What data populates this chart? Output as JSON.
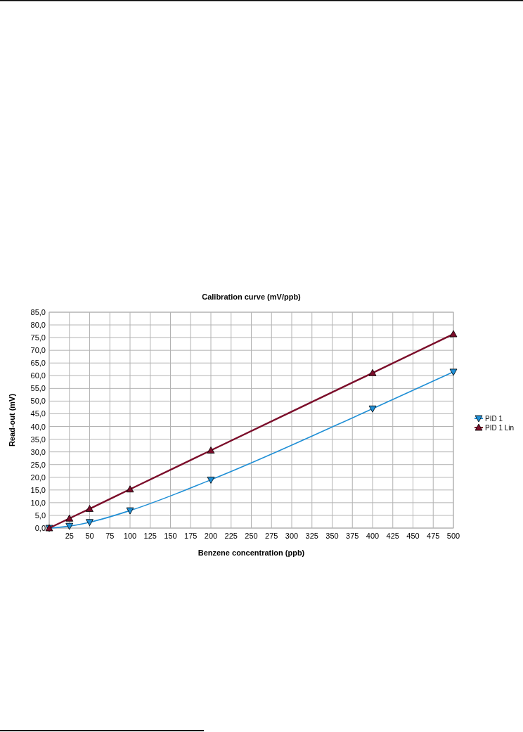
{
  "chart_data": {
    "type": "line",
    "title": "Calibration curve (mV/ppb)",
    "xlabel": "Benzene concentration (ppb)",
    "ylabel": "Read-out (mV)",
    "x": [
      0,
      25,
      50,
      100,
      200,
      400,
      500
    ],
    "series": [
      {
        "name": "PID 1",
        "color": "#1f8fd6",
        "marker": "triangle-down",
        "values": [
          0,
          0.8,
          2.3,
          6.9,
          19.0,
          47.0,
          61.5
        ]
      },
      {
        "name": "PID 1 Lin",
        "color": "#7b0d2a",
        "marker": "triangle",
        "values": [
          0,
          3.8,
          7.6,
          15.3,
          30.6,
          61.1,
          76.4
        ]
      }
    ],
    "xlim": [
      0,
      500
    ],
    "xticks": [
      {
        "value": 0,
        "label": null
      },
      25,
      50,
      75,
      100,
      125,
      150,
      175,
      200,
      225,
      250,
      275,
      300,
      325,
      350,
      375,
      400,
      425,
      450,
      475,
      500
    ],
    "ylim": [
      0,
      85
    ],
    "yticks": [
      {
        "value": 0,
        "label": "0,0"
      },
      {
        "value": 5,
        "label": "5,0"
      },
      {
        "value": 10,
        "label": "10,0"
      },
      {
        "value": 15,
        "label": "15,0"
      },
      {
        "value": 20,
        "label": "20,0"
      },
      {
        "value": 25,
        "label": "25,0"
      },
      {
        "value": 30,
        "label": "30,0"
      },
      {
        "value": 35,
        "label": "35,0"
      },
      {
        "value": 40,
        "label": "40,0"
      },
      {
        "value": 45,
        "label": "45,0"
      },
      {
        "value": 50,
        "label": "50,0"
      },
      {
        "value": 55,
        "label": "55,0"
      },
      {
        "value": 60,
        "label": "60,0"
      },
      {
        "value": 65,
        "label": "65,0"
      },
      {
        "value": 70,
        "label": "70,0"
      },
      {
        "value": 75,
        "label": "75,0"
      },
      {
        "value": 80,
        "label": "80,0"
      },
      {
        "value": 85,
        "label": "85,0"
      }
    ],
    "grid": true,
    "legend": "right"
  }
}
